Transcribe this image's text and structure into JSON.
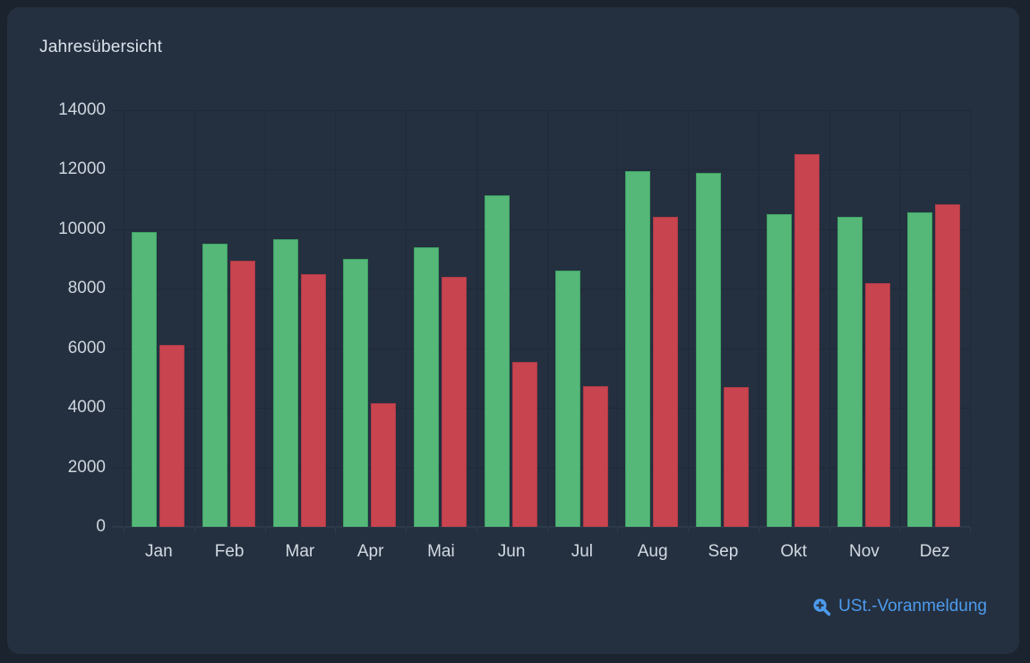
{
  "panel": {
    "title": "Jahresübersicht"
  },
  "link": {
    "label": "USt.-Voranmeldung",
    "icon": "zoom-in-icon"
  },
  "colors": {
    "outer_bg": "#1a232e",
    "panel_bg": "#243040",
    "grid": "#1f2a36",
    "green": "#55b878",
    "red": "#c8444e",
    "blue": "#4d9bee",
    "text": "#d3dae2"
  },
  "chart_data": {
    "type": "bar",
    "title": "Jahresübersicht",
    "categories": [
      "Jan",
      "Feb",
      "Mar",
      "Apr",
      "Mai",
      "Jun",
      "Jul",
      "Aug",
      "Sep",
      "Okt",
      "Nov",
      "Dez"
    ],
    "series": [
      {
        "name": "green",
        "color": "#55b878",
        "values": [
          9900,
          9510,
          9650,
          9010,
          9390,
          11150,
          8610,
          11950,
          11890,
          10500,
          10430,
          10580
        ]
      },
      {
        "name": "red",
        "color": "#c8444e",
        "values": [
          6100,
          8950,
          8490,
          4150,
          8410,
          5540,
          4720,
          10420,
          4700,
          12510,
          8190,
          10840
        ]
      }
    ],
    "ylim": [
      0,
      14000
    ],
    "yticks": [
      0,
      2000,
      4000,
      6000,
      8000,
      10000,
      12000,
      14000
    ],
    "xlabel": "",
    "ylabel": "",
    "grid": true,
    "legend_position": "none"
  }
}
